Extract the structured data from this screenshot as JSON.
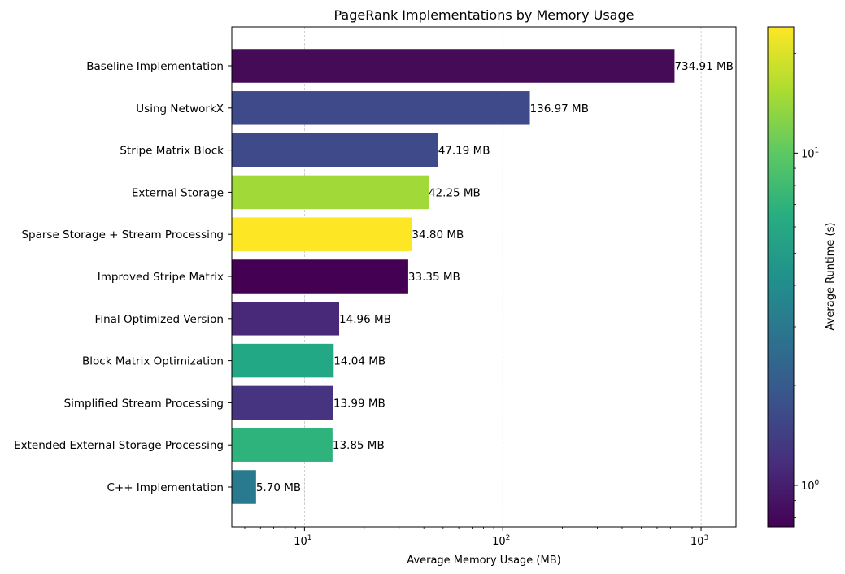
{
  "chart_data": {
    "type": "bar",
    "orientation": "horizontal",
    "title": "PageRank Implementations by Memory Usage",
    "xlabel": "Average Memory Usage (MB)",
    "ylabel": "",
    "xscale": "log",
    "xlim": [
      4.3,
      1500
    ],
    "grid": "x-major-dashed",
    "value_suffix": " MB",
    "categories": [
      "Baseline Implementation",
      "Using NetworkX",
      "Stripe Matrix Block",
      "External Storage",
      "Sparse Storage + Stream Processing",
      "Improved Stripe Matrix",
      "Final Optimized Version",
      "Block Matrix Optimization",
      "Simplified Stream Processing",
      "Extended External Storage Processing",
      "C++ Implementation"
    ],
    "values": [
      734.91,
      136.97,
      47.19,
      42.25,
      34.8,
      33.35,
      14.96,
      14.04,
      13.99,
      13.85,
      5.7
    ],
    "value_labels": [
      "734.91 MB",
      "136.97 MB",
      "47.19 MB",
      "42.25 MB",
      "34.80 MB",
      "33.35 MB",
      "14.96 MB",
      "14.04 MB",
      "13.99 MB",
      "13.85 MB",
      "5.70 MB"
    ],
    "colors": [
      "#450b57",
      "#3e4a89",
      "#3e4a89",
      "#a1da38",
      "#fde725",
      "#440154",
      "#482979",
      "#22a884",
      "#463480",
      "#2eb37c",
      "#297a8e"
    ],
    "x_tick_labels": [
      {
        "base": "10",
        "exp": "1",
        "value": 10
      },
      {
        "base": "10",
        "exp": "2",
        "value": 100
      },
      {
        "base": "10",
        "exp": "3",
        "value": 1000
      }
    ],
    "colorbar": {
      "label": "Average Runtime (s)",
      "scale": "log",
      "range": [
        0.75,
        24
      ],
      "colormap": "viridis",
      "tick_labels": [
        {
          "base": "10",
          "exp": "0",
          "value": 1
        },
        {
          "base": "10",
          "exp": "1",
          "value": 10
        }
      ]
    }
  }
}
